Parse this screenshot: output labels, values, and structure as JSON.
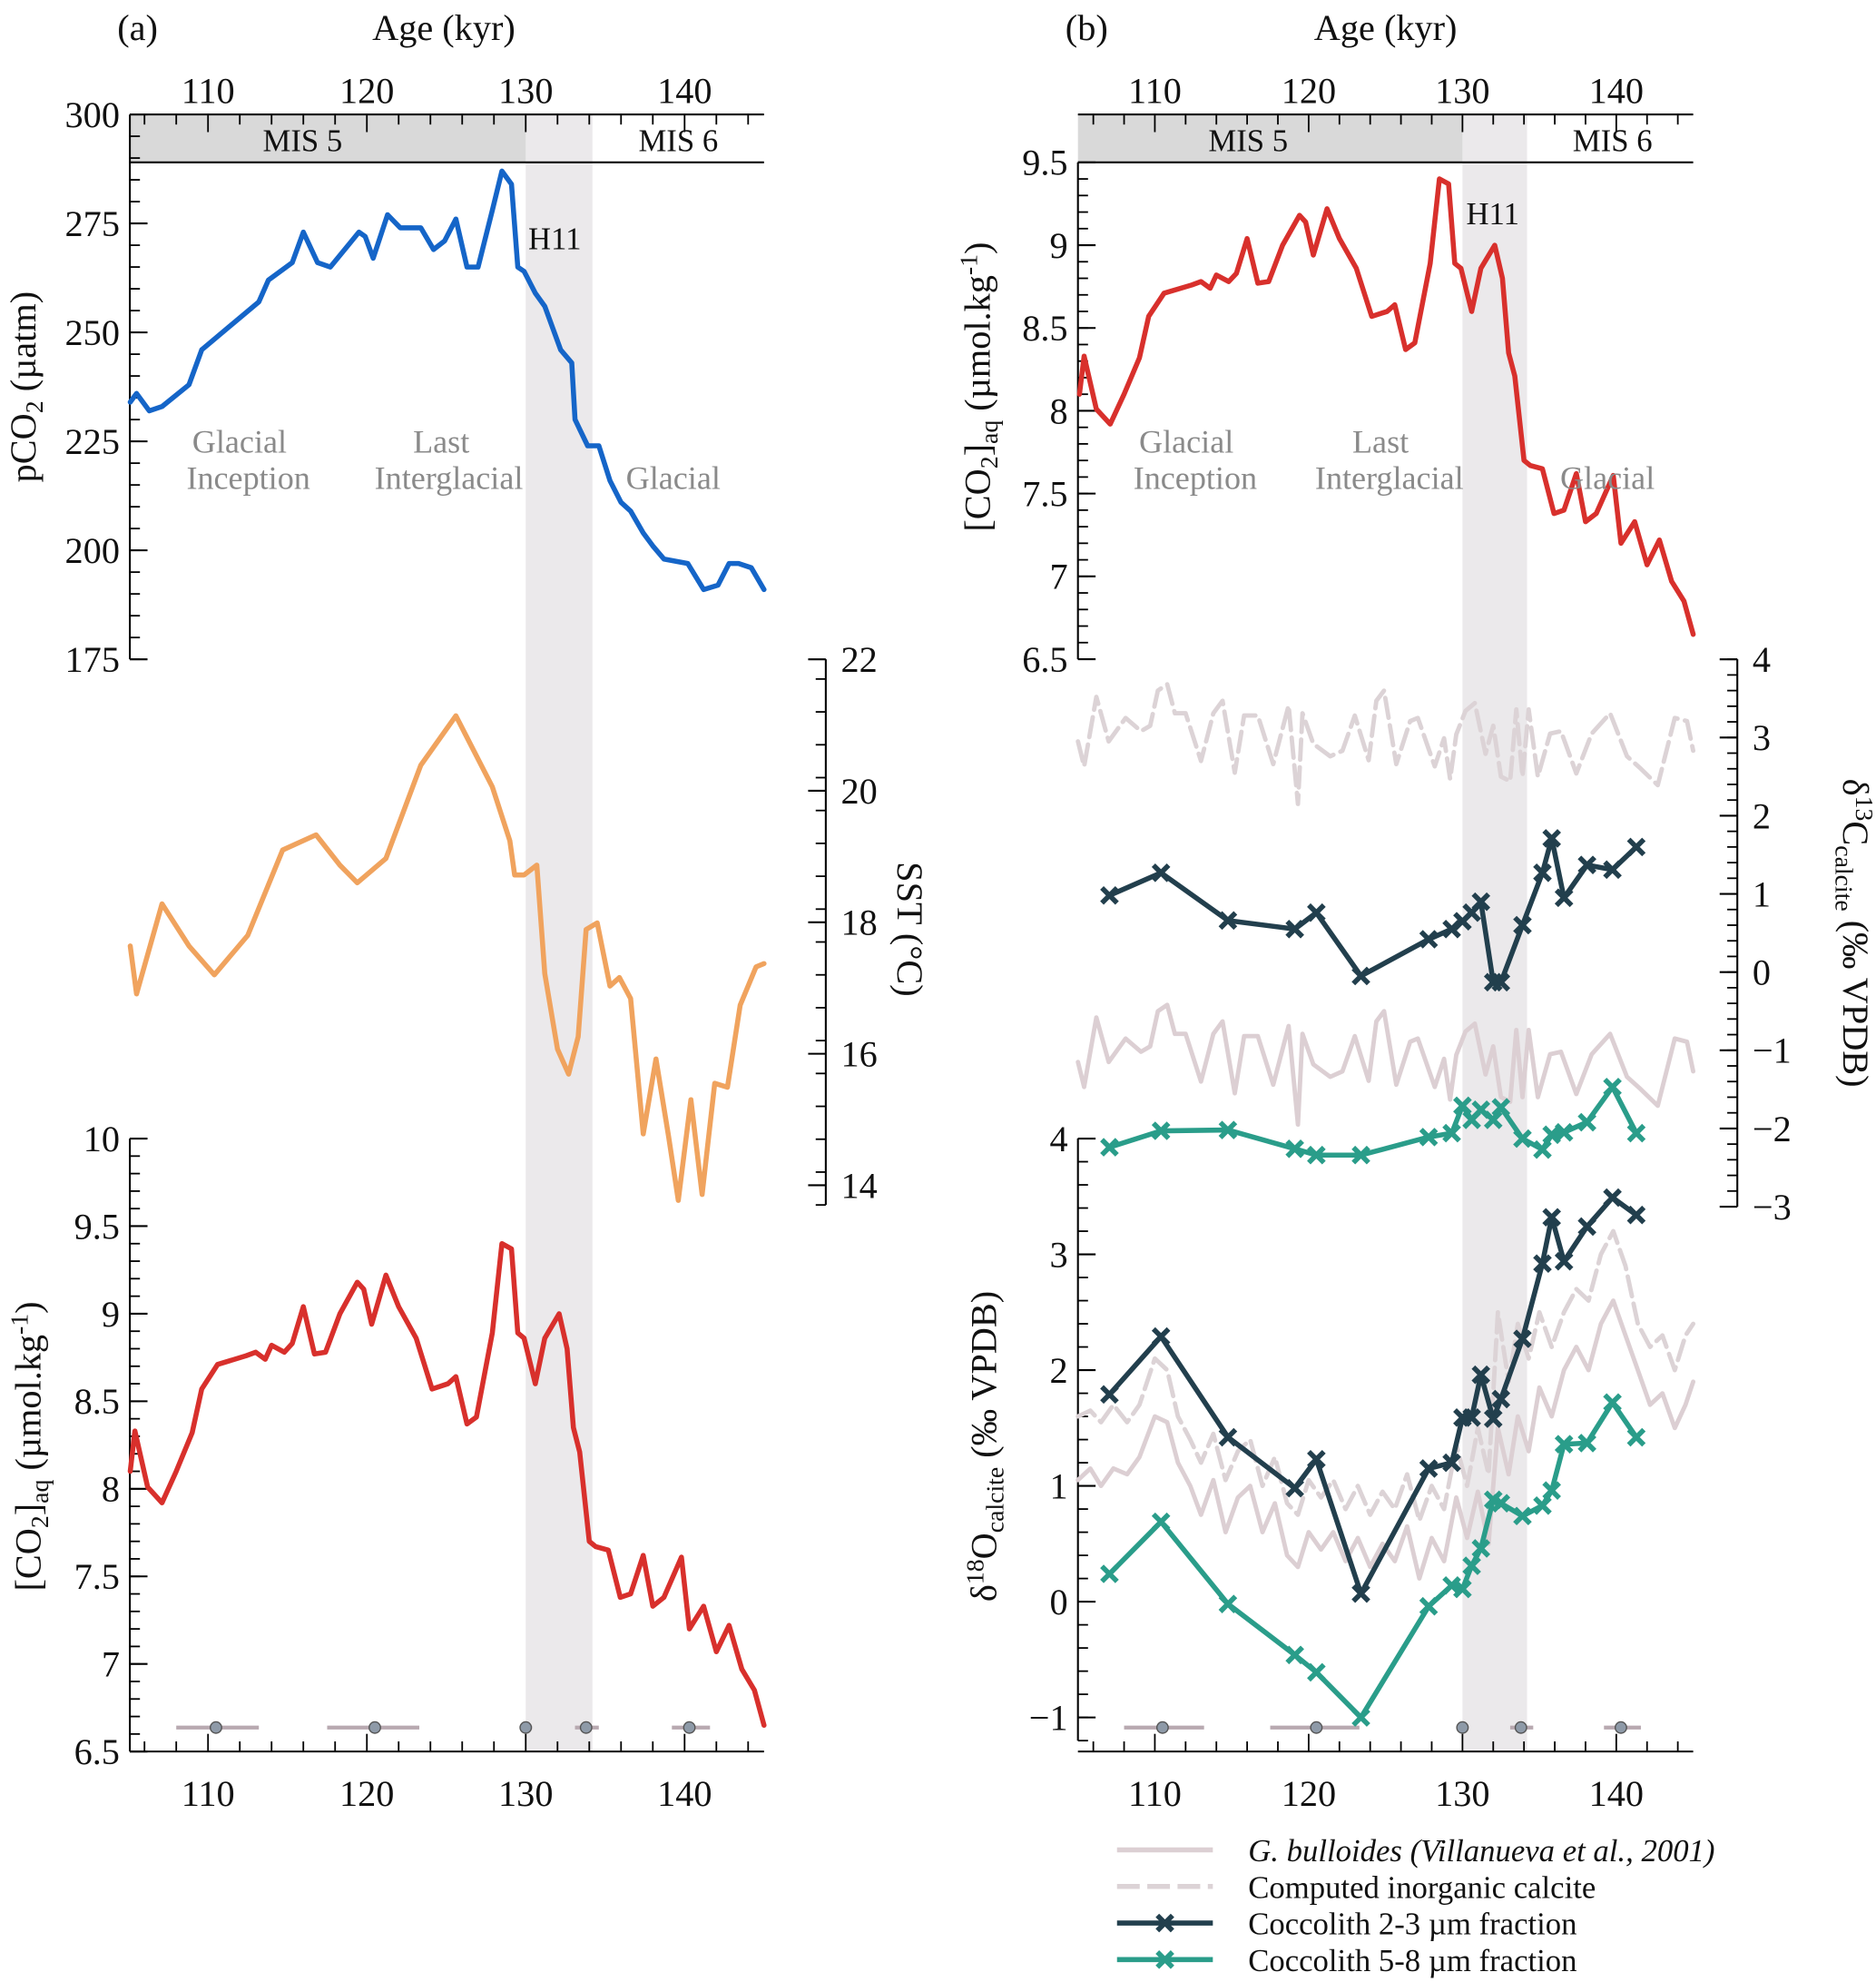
{
  "colors": {
    "pco2": "#1565c8",
    "sst": "#f0a35e",
    "co2aq": "#d8302c",
    "coc23": "#223f4d",
    "coc58": "#2a9d8a",
    "gbull": "#dccfd3",
    "inorg": "#dcd3d6",
    "band": "#ebe9eb",
    "mis5": "#d9d9d9"
  },
  "panel_a": {
    "tag": "(a)",
    "xlabel": "Age (kyr)",
    "mis5": "MIS 5",
    "mis6": "MIS 6",
    "h11": "H11",
    "ann1a": "Glacial",
    "ann1b": "Inception",
    "ann2a": "Last",
    "ann2b": "Interglacial",
    "ann3": "Glacial",
    "y_pco2_a": "pCO",
    "y_pco2_sub": "2",
    "y_pco2_b": " (µatm)",
    "y_sst": "SST (°C)",
    "y_co2_a": "[CO",
    "y_co2_sub1": "2",
    "y_co2_b": "]",
    "y_co2_sub2": "aq",
    "y_co2_c": " (µmol.kg",
    "y_co2_sup": "-1",
    "y_co2_d": ")"
  },
  "panel_b": {
    "tag": "(b)",
    "xlabel": "Age (kyr)",
    "mis5": "MIS 5",
    "mis6": "MIS 6",
    "h11": "H11",
    "ann1a": "Glacial",
    "ann1b": "Inception",
    "ann2a": "Last",
    "ann2b": "Interglacial",
    "ann3": "Glacial",
    "y_co2_a": "[CO",
    "y_co2_sub1": "2",
    "y_co2_b": "]",
    "y_co2_sub2": "aq",
    "y_co2_c": " (µmol.kg",
    "y_co2_sup": "-1",
    "y_co2_d": ")",
    "y_d13_a": "δ",
    "y_d13_sup": "13",
    "y_d13_b": "C",
    "y_d13_sub": "calcite",
    "y_d13_c": " (‰ VPDB)",
    "y_d18_a": "δ",
    "y_d18_sup": "18",
    "y_d18_b": "O",
    "y_d18_sub": "calcite",
    "y_d18_c": " (‰ VPDB)"
  },
  "legend": [
    {
      "label": "G. bulloides (Villanueva et al., 2001)",
      "style": "solid"
    },
    {
      "label": "Computed inorganic calcite",
      "style": "dashed"
    },
    {
      "label": "Coccolith 2-3 µm fraction",
      "style": "marker"
    },
    {
      "label": "Coccolith 5-8 µm fraction",
      "style": "marker"
    }
  ],
  "chart_data": {
    "type": "line",
    "xlabel": "Age (kyr)",
    "xlim": [
      105,
      145
    ],
    "x_ticks": [
      110,
      120,
      130,
      140
    ],
    "h11_band": [
      130,
      134.2
    ],
    "mis_boundary": 130,
    "axes": {
      "pco2": {
        "label": "pCO2 (µatm)",
        "ylim": [
          175,
          300
        ],
        "ticks": [
          175,
          200,
          225,
          250,
          275,
          300
        ]
      },
      "sst": {
        "label": "SST (°C)",
        "ylim": [
          14,
          22
        ],
        "ticks": [
          14,
          16,
          18,
          20,
          22
        ]
      },
      "co2aq_a": {
        "label": "[CO2]aq (µmol.kg-1)",
        "ylim": [
          6.5,
          10
        ],
        "ticks": [
          6.5,
          7,
          7.5,
          8,
          8.5,
          9,
          9.5,
          10
        ],
        "tick_labels": [
          "6.5",
          "7",
          "7.5",
          "8",
          "8.5",
          "9",
          "9.5",
          "10"
        ]
      },
      "co2aq_b": {
        "label": "[CO2]aq (µmol.kg-1)",
        "ylim": [
          6.5,
          9.5
        ],
        "ticks": [
          6.5,
          7,
          7.5,
          8,
          8.5,
          9,
          9.5
        ],
        "tick_labels": [
          "6.5",
          "7",
          "7.5",
          "8",
          "8.5",
          "9",
          "9.5"
        ]
      },
      "d13c": {
        "label": "δ13C calcite (‰ VPDB)",
        "ylim": [
          -3,
          4
        ],
        "ticks": [
          -3,
          -2,
          -1,
          0,
          1,
          2,
          3,
          4
        ],
        "tick_labels": [
          "−3",
          "−2",
          "−1",
          "0",
          "1",
          "2",
          "3",
          "4"
        ]
      },
      "d18o": {
        "label": "δ18O calcite (‰ VPDB)",
        "ylim": [
          -1,
          4
        ],
        "ticks": [
          -1,
          0,
          1,
          2,
          3,
          4
        ],
        "tick_labels": [
          "−1",
          "0",
          "1",
          "2",
          "3",
          "4"
        ]
      }
    },
    "age_control": [
      {
        "age": 110.5,
        "min": 108,
        "max": 113.2
      },
      {
        "age": 120.5,
        "min": 117.5,
        "max": 123.3
      },
      {
        "age": 130,
        "min": 129.7,
        "max": 130.4
      },
      {
        "age": 133.8,
        "min": 133.1,
        "max": 134.6
      },
      {
        "age": 140.3,
        "min": 139.2,
        "max": 141.6
      }
    ],
    "series": {
      "pco2": {
        "name": "pCO2",
        "x": [
          105.1,
          105.5,
          106.3,
          107.1,
          108.8,
          109.6,
          113.2,
          113.8,
          115.3,
          116.0,
          116.9,
          117.7,
          119.5,
          119.9,
          120.4,
          121.3,
          122.1,
          123.4,
          124.2,
          124.9,
          125.6,
          126.3,
          127.0,
          127.9,
          128.5,
          129.1,
          129.5,
          129.9,
          130.6,
          131.2,
          132.2,
          132.9,
          133.1,
          133.9,
          134.6,
          135.3,
          136.0,
          136.6,
          137.4,
          138.0,
          138.7,
          140.2,
          141.2,
          142.1,
          142.8,
          143.4,
          144.2,
          145.0
        ],
        "y": [
          234,
          236,
          232,
          233,
          238,
          246,
          257,
          262,
          266,
          273,
          266,
          265,
          273,
          272,
          267,
          277,
          274,
          274,
          269,
          271,
          276,
          265,
          265,
          278,
          287,
          284,
          265,
          264,
          259,
          256,
          246,
          243,
          230,
          224,
          224,
          216,
          211,
          209,
          204,
          201,
          198,
          197,
          191,
          192,
          197,
          197,
          196,
          191
        ]
      },
      "sst": {
        "name": "SST",
        "x": [
          105.1,
          105.5,
          107.1,
          108.8,
          110.4,
          112.5,
          114.7,
          116.8,
          118.3,
          119.4,
          121.2,
          123.4,
          125.6,
          127.9,
          129.0,
          129.3,
          129.9,
          130.7,
          131.2,
          132.0,
          132.7,
          133.3,
          133.8,
          134.5,
          135.3,
          135.9,
          136.6,
          137.4,
          138.2,
          139.0,
          139.6,
          140.4,
          141.1,
          141.9,
          142.7,
          143.5,
          144.5,
          145.0
        ],
        "y": [
          17.64,
          16.91,
          18.28,
          17.64,
          17.2,
          17.8,
          19.1,
          19.33,
          18.87,
          18.6,
          18.97,
          20.39,
          21.14,
          20.06,
          19.24,
          18.72,
          18.72,
          18.87,
          17.22,
          16.07,
          15.69,
          16.26,
          17.89,
          17.99,
          17.03,
          17.16,
          16.84,
          14.78,
          15.92,
          14.73,
          13.77,
          15.3,
          13.86,
          15.55,
          15.49,
          16.74,
          17.32,
          17.37
        ]
      },
      "co2aq": {
        "name": "[CO2]aq",
        "x": [
          105.1,
          105.4,
          106.2,
          107.1,
          108.0,
          109.0,
          109.6,
          110.6,
          112.4,
          113.0,
          113.6,
          114.0,
          114.8,
          115.3,
          116.0,
          116.7,
          117.4,
          118.3,
          119.4,
          119.8,
          120.3,
          121.2,
          122.0,
          123.1,
          124.1,
          125.1,
          125.6,
          126.3,
          126.9,
          127.9,
          128.5,
          129.1,
          129.5,
          129.9,
          130.6,
          131.2,
          132.1,
          132.6,
          133.0,
          133.4,
          134.0,
          134.4,
          135.2,
          135.95,
          136.6,
          137.4,
          138.0,
          138.7,
          139.8,
          140.3,
          141.2,
          142.0,
          142.8,
          143.6,
          144.4,
          145.0
        ],
        "y": [
          8.1,
          8.33,
          8.01,
          7.92,
          8.1,
          8.32,
          8.57,
          8.71,
          8.76,
          8.78,
          8.74,
          8.82,
          8.78,
          8.83,
          9.04,
          8.77,
          8.78,
          9.0,
          9.18,
          9.14,
          8.94,
          9.22,
          9.04,
          8.86,
          8.57,
          8.6,
          8.64,
          8.37,
          8.41,
          8.89,
          9.4,
          9.37,
          8.89,
          8.86,
          8.6,
          8.86,
          9.0,
          8.8,
          8.35,
          8.21,
          7.7,
          7.67,
          7.65,
          7.38,
          7.4,
          7.62,
          7.33,
          7.38,
          7.61,
          7.2,
          7.33,
          7.07,
          7.22,
          6.97,
          6.85,
          6.65
        ]
      },
      "coc_ages": [
        107.05,
        110.4,
        114.75,
        119.1,
        120.5,
        123.4,
        127.8,
        129.3,
        130.0,
        130.6,
        131.2,
        132.0,
        132.5,
        133.9,
        135.2,
        135.8,
        136.6,
        138.1,
        139.75,
        141.3
      ],
      "coc23_d13c": {
        "name": "Coccolith 2-3 µm fraction",
        "y": [
          0.98,
          1.27,
          0.66,
          0.55,
          0.76,
          -0.05,
          0.42,
          0.55,
          0.65,
          0.76,
          0.9,
          -0.13,
          -0.13,
          0.6,
          1.27,
          1.71,
          0.95,
          1.37,
          1.31,
          1.6
        ]
      },
      "coc58_d13c": {
        "name": "Coccolith 5-8 µm fraction",
        "y": [
          -2.24,
          -2.03,
          -2.02,
          -2.26,
          -2.34,
          -2.34,
          -2.11,
          -2.06,
          -1.71,
          -1.89,
          -1.76,
          -1.89,
          -1.73,
          -2.13,
          -2.27,
          -2.08,
          -2.05,
          -1.92,
          -1.47,
          -2.06
        ]
      },
      "coc23_d18o": {
        "name": "Coccolith 2-3 µm fraction",
        "y": [
          1.79,
          2.29,
          1.42,
          0.98,
          1.23,
          0.07,
          1.15,
          1.2,
          1.59,
          1.59,
          1.96,
          1.58,
          1.75,
          2.27,
          2.92,
          3.32,
          2.94,
          3.24,
          3.49,
          3.34
        ]
      },
      "coc58_d18o": {
        "name": "Coccolith 5-8 µm fraction",
        "y": [
          0.24,
          0.69,
          -0.02,
          -0.46,
          -0.61,
          -1.0,
          -0.04,
          0.14,
          0.11,
          0.31,
          0.46,
          0.88,
          0.85,
          0.74,
          0.83,
          0.96,
          1.36,
          1.37,
          1.72,
          1.42
        ]
      },
      "gb13_x": [
        105.0,
        105.4,
        106.2,
        107.0,
        108.1,
        109.1,
        109.7,
        110.2,
        110.8,
        111.3,
        112.0,
        113.0,
        113.8,
        114.4,
        115.2,
        115.8,
        116.7,
        117.7,
        118.7,
        119.3,
        119.6,
        120.3,
        121.4,
        122.2,
        123.0,
        123.9,
        124.4,
        124.9,
        125.7,
        126.6,
        127.1,
        128.2,
        128.8,
        129.2,
        129.6,
        130.2,
        130.8,
        131.5,
        132.0,
        132.5,
        133.1,
        133.5,
        133.9,
        134.3,
        134.9,
        135.7,
        136.4,
        137.4,
        138.4,
        139.6,
        140.7,
        141.6,
        142.7,
        143.8,
        144.6,
        145.0
      ],
      "gbull_d13c": {
        "name": "G. bulloides",
        "y": [
          -1.15,
          -1.47,
          -0.58,
          -1.15,
          -0.85,
          -1.02,
          -0.95,
          -0.5,
          -0.42,
          -0.79,
          -0.79,
          -1.4,
          -0.79,
          -0.63,
          -1.55,
          -0.82,
          -0.82,
          -1.44,
          -0.69,
          -1.95,
          -0.79,
          -1.18,
          -1.34,
          -1.27,
          -0.82,
          -1.39,
          -0.63,
          -0.5,
          -1.44,
          -0.89,
          -0.85,
          -1.47,
          -1.11,
          -1.63,
          -1.06,
          -0.76,
          -0.66,
          -1.31,
          -0.95,
          -1.6,
          -1.66,
          -0.74,
          -1.6,
          -0.74,
          -1.6,
          -1.05,
          -1.02,
          -1.56,
          -1.05,
          -0.79,
          -1.34,
          -1.5,
          -1.71,
          -0.85,
          -0.89,
          -1.27
        ]
      },
      "inorg_d13c": {
        "name": "Computed inorganic calcite",
        "y": [
          2.95,
          2.63,
          3.52,
          2.95,
          3.25,
          3.08,
          3.15,
          3.6,
          3.68,
          3.31,
          3.31,
          2.7,
          3.31,
          3.47,
          2.55,
          3.28,
          3.28,
          2.66,
          3.41,
          2.15,
          3.31,
          2.92,
          2.76,
          2.83,
          3.28,
          2.71,
          3.47,
          3.6,
          2.66,
          3.21,
          3.25,
          2.63,
          2.99,
          2.47,
          3.04,
          3.34,
          3.44,
          2.79,
          3.15,
          2.5,
          2.44,
          3.36,
          2.5,
          3.36,
          2.5,
          3.05,
          3.08,
          2.54,
          3.05,
          3.31,
          2.76,
          2.6,
          2.39,
          3.25,
          3.21,
          2.83
        ]
      },
      "gb18_x": [
        105.0,
        105.8,
        106.5,
        107.3,
        108.2,
        109.0,
        110.0,
        110.8,
        111.5,
        112.3,
        113.0,
        113.8,
        114.6,
        115.4,
        116.2,
        117.0,
        117.8,
        118.6,
        119.3,
        120.0,
        120.8,
        121.6,
        122.4,
        123.2,
        124.0,
        124.8,
        125.6,
        126.4,
        127.2,
        128.0,
        128.8,
        129.6,
        130.3,
        131.0,
        131.7,
        132.3,
        133.0,
        133.6,
        134.3,
        135.0,
        135.8,
        136.6,
        137.4,
        138.2,
        139.0,
        139.8,
        140.6,
        141.4,
        142.2,
        143.0,
        143.8,
        144.5,
        145.0
      ],
      "gbull_d18o": {
        "name": "G. bulloides",
        "y": [
          1.05,
          1.15,
          1.0,
          1.15,
          1.1,
          1.25,
          1.6,
          1.55,
          1.2,
          1.0,
          0.75,
          1.05,
          0.6,
          0.9,
          1.0,
          0.6,
          0.85,
          0.4,
          0.3,
          0.6,
          0.45,
          0.6,
          0.35,
          0.55,
          0.3,
          0.5,
          0.35,
          0.65,
          0.2,
          0.55,
          0.35,
          0.9,
          0.55,
          0.95,
          0.5,
          1.5,
          1.1,
          1.6,
          1.3,
          1.85,
          1.6,
          2.0,
          2.2,
          2.0,
          2.4,
          2.6,
          2.3,
          2.0,
          1.7,
          1.8,
          1.5,
          1.7,
          1.9
        ]
      },
      "inorg_d18o": {
        "name": "Computed inorganic calcite",
        "y": [
          1.6,
          1.65,
          1.55,
          1.7,
          1.55,
          1.7,
          2.1,
          2.0,
          1.6,
          1.4,
          1.2,
          1.45,
          1.05,
          1.3,
          1.4,
          1.0,
          1.25,
          0.85,
          0.75,
          1.05,
          0.9,
          1.05,
          0.8,
          1.0,
          0.75,
          0.95,
          0.8,
          1.1,
          0.7,
          1.0,
          0.8,
          1.35,
          1.0,
          1.5,
          1.1,
          2.5,
          1.9,
          2.4,
          2.1,
          2.5,
          2.2,
          2.5,
          2.7,
          2.6,
          3.0,
          3.2,
          2.9,
          2.4,
          2.2,
          2.3,
          2.0,
          2.3,
          2.4
        ]
      }
    }
  }
}
